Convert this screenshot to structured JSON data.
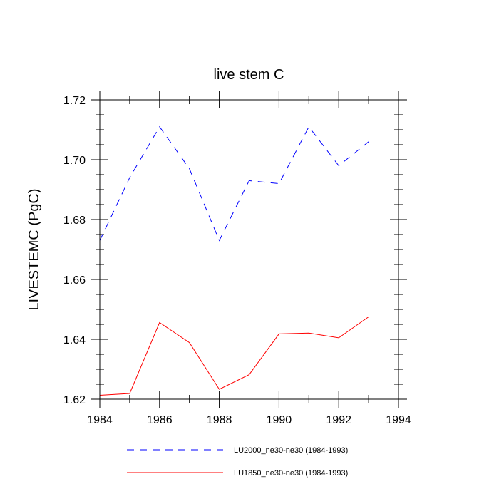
{
  "chart_data": {
    "type": "line",
    "title": "live stem C",
    "xlabel": "",
    "ylabel": "LIVESTEMC  (PgC)",
    "xlim": [
      1984,
      1994
    ],
    "ylim": [
      1.62,
      1.72
    ],
    "xticks": [
      1984,
      1986,
      1988,
      1990,
      1992,
      1994
    ],
    "xtick_labels": [
      "1984",
      "1986",
      "1988",
      "1990",
      "1992",
      "1994"
    ],
    "yticks": [
      1.62,
      1.64,
      1.66,
      1.68,
      1.7,
      1.72
    ],
    "ytick_labels": [
      "1.62",
      "1.64",
      "1.66",
      "1.68",
      "1.70",
      "1.72"
    ],
    "grid": false,
    "legend_position": "bottom",
    "series": [
      {
        "name": "LU2000_ne30-ne30 (1984-1993)",
        "color": "#0000ff",
        "style": "dashed",
        "x": [
          1984,
          1985,
          1986,
          1987,
          1988,
          1989,
          1990,
          1991,
          1992,
          1993
        ],
        "y": [
          1.673,
          1.694,
          1.711,
          1.697,
          1.673,
          1.693,
          1.692,
          1.711,
          1.698,
          1.706
        ]
      },
      {
        "name": "LU1850_ne30-ne30 (1984-1993)",
        "color": "#ff0000",
        "style": "solid",
        "x": [
          1984,
          1985,
          1986,
          1987,
          1988,
          1989,
          1990,
          1991,
          1992,
          1993
        ],
        "y": [
          1.6213,
          1.6219,
          1.6456,
          1.6389,
          1.6233,
          1.6282,
          1.6418,
          1.6421,
          1.6405,
          1.6475
        ]
      }
    ]
  }
}
